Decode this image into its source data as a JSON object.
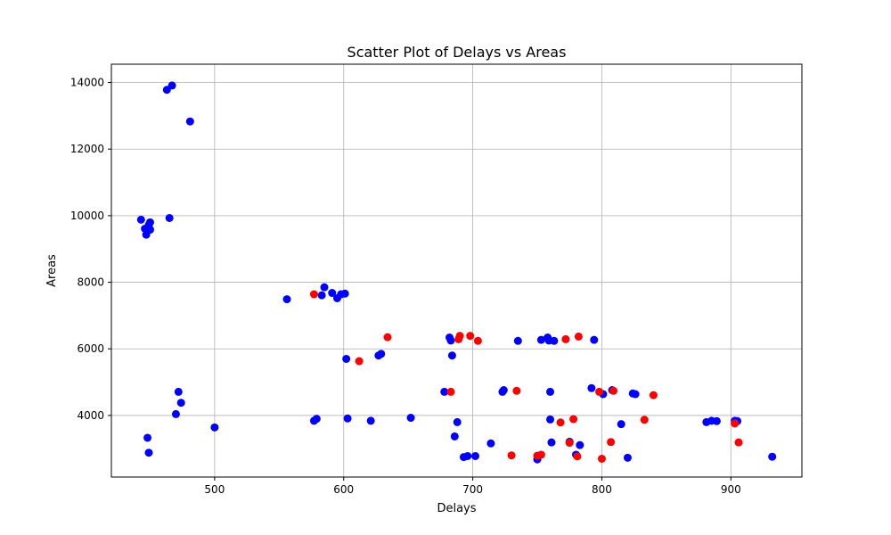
{
  "chart_data": {
    "type": "scatter",
    "title": "Scatter Plot of Delays vs Areas",
    "xlabel": "Delays",
    "ylabel": "Areas",
    "xlim": [
      420,
      955
    ],
    "ylim": [
      2150,
      14550
    ],
    "xticks": [
      500,
      600,
      700,
      800,
      900
    ],
    "yticks": [
      4000,
      6000,
      8000,
      10000,
      12000,
      14000
    ],
    "grid": true,
    "colors": {
      "blue": "#0000ff",
      "red": "#ff0000"
    },
    "series": [
      {
        "color": "#0000ff",
        "points": [
          [
            443,
            9880
          ],
          [
            446,
            9610
          ],
          [
            448,
            9550
          ],
          [
            447,
            9430
          ],
          [
            449,
            9720
          ],
          [
            450,
            9800
          ],
          [
            450,
            9580
          ],
          [
            465,
            9930
          ],
          [
            463,
            13780
          ],
          [
            467,
            13910
          ],
          [
            481,
            12830
          ],
          [
            448,
            3330
          ],
          [
            449,
            2880
          ],
          [
            470,
            4040
          ],
          [
            472,
            4710
          ],
          [
            474,
            4380
          ],
          [
            500,
            3640
          ],
          [
            556,
            7490
          ],
          [
            583,
            7610
          ],
          [
            585,
            7850
          ],
          [
            591,
            7680
          ],
          [
            595,
            7520
          ],
          [
            598,
            7640
          ],
          [
            601,
            7660
          ],
          [
            602,
            5700
          ],
          [
            627,
            5800
          ],
          [
            629,
            5850
          ],
          [
            577,
            3840
          ],
          [
            579,
            3900
          ],
          [
            603,
            3910
          ],
          [
            621,
            3840
          ],
          [
            652,
            3930
          ],
          [
            682,
            6340
          ],
          [
            683,
            6250
          ],
          [
            684,
            5800
          ],
          [
            678,
            4710
          ],
          [
            688,
            3800
          ],
          [
            686,
            3370
          ],
          [
            693,
            2750
          ],
          [
            696,
            2780
          ],
          [
            702,
            2780
          ],
          [
            714,
            3160
          ],
          [
            723,
            4710
          ],
          [
            724,
            4760
          ],
          [
            735,
            6240
          ],
          [
            753,
            6270
          ],
          [
            758,
            6340
          ],
          [
            759,
            6250
          ],
          [
            763,
            6240
          ],
          [
            760,
            4710
          ],
          [
            760,
            3880
          ],
          [
            761,
            3190
          ],
          [
            750,
            2680
          ],
          [
            775,
            3210
          ],
          [
            780,
            2820
          ],
          [
            783,
            3110
          ],
          [
            794,
            6270
          ],
          [
            792,
            4820
          ],
          [
            801,
            4640
          ],
          [
            808,
            4760
          ],
          [
            815,
            3740
          ],
          [
            820,
            2730
          ],
          [
            824,
            4660
          ],
          [
            826,
            4640
          ],
          [
            881,
            3800
          ],
          [
            885,
            3840
          ],
          [
            889,
            3830
          ],
          [
            903,
            3840
          ],
          [
            905,
            3830
          ],
          [
            932,
            2760
          ]
        ]
      },
      {
        "color": "#ff0000",
        "points": [
          [
            577,
            7640
          ],
          [
            612,
            5630
          ],
          [
            634,
            6350
          ],
          [
            683,
            4710
          ],
          [
            689,
            6290
          ],
          [
            690,
            6390
          ],
          [
            698,
            6390
          ],
          [
            704,
            6240
          ],
          [
            730,
            2800
          ],
          [
            734,
            4740
          ],
          [
            750,
            2790
          ],
          [
            753,
            2820
          ],
          [
            768,
            3790
          ],
          [
            772,
            6290
          ],
          [
            775,
            3180
          ],
          [
            778,
            3890
          ],
          [
            781,
            2770
          ],
          [
            782,
            6370
          ],
          [
            798,
            4710
          ],
          [
            800,
            2700
          ],
          [
            807,
            3200
          ],
          [
            809,
            4740
          ],
          [
            833,
            3870
          ],
          [
            840,
            4610
          ],
          [
            903,
            3760
          ],
          [
            906,
            3190
          ]
        ]
      }
    ]
  }
}
